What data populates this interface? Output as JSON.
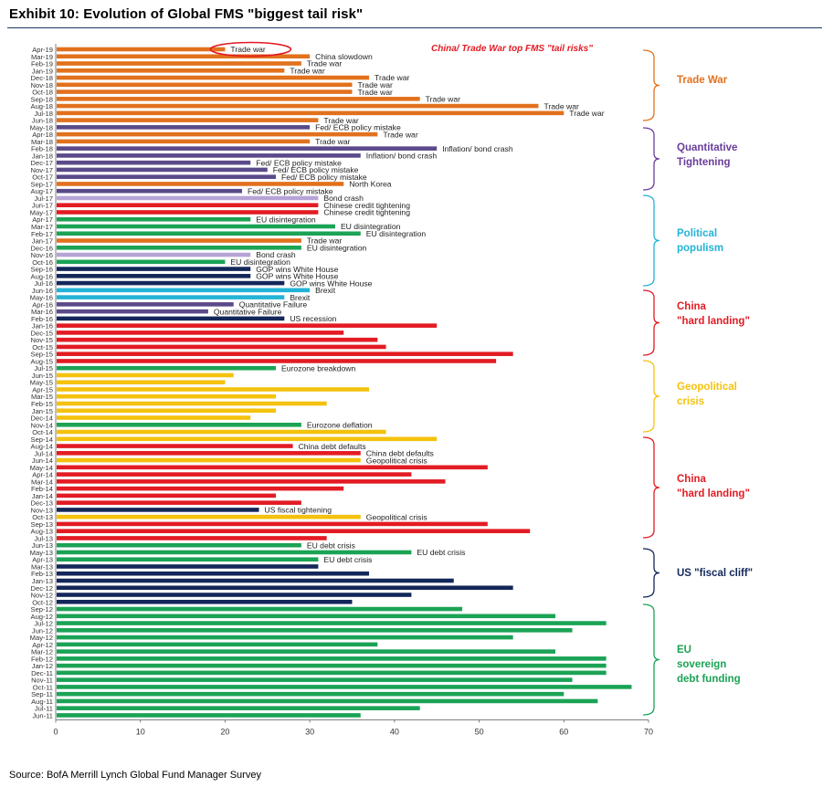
{
  "title": "Exhibit 10: Evolution of Global FMS \"biggest tail risk\"",
  "source": "Source: BofA Merrill Lynch Global Fund Manager Survey",
  "colors": {
    "Trade war": "#e2711d",
    "QT": "#5b4a8a",
    "Political": "#23b3d6",
    "China": "#e31b23",
    "Geopolitical": "#f4c20d",
    "EU": "#1ba355",
    "US": "#13275a",
    "Light": "#b7a4d6"
  },
  "chart_data": {
    "type": "bar",
    "orientation": "horizontal",
    "xlim": [
      0,
      70
    ],
    "xticks": [
      0,
      10,
      20,
      30,
      40,
      50,
      60,
      70
    ],
    "annotation": "China/ Trade War top FMS \"tail risks\"",
    "highlighted_label": "Trade war",
    "categories": [
      "Apr-19",
      "Mar-19",
      "Feb-19",
      "Jan-19",
      "Dec-18",
      "Nov-18",
      "Oct-18",
      "Sep-18",
      "Aug-18",
      "Jul-18",
      "Jun-18",
      "May-18",
      "Apr-18",
      "Mar-18",
      "Feb-18",
      "Jan-18",
      "Dec-17",
      "Nov-17",
      "Oct-17",
      "Sep-17",
      "Aug-17",
      "Jul-17",
      "Jun-17",
      "May-17",
      "Apr-17",
      "Mar-17",
      "Feb-17",
      "Jan-17",
      "Dec-16",
      "Nov-16",
      "Oct-16",
      "Sep-16",
      "Aug-16",
      "Jul-16",
      "Jun-16",
      "May-16",
      "Apr-16",
      "Mar-16",
      "Feb-16",
      "Jan-16",
      "Dec-15",
      "Nov-15",
      "Oct-15",
      "Sep-15",
      "Aug-15",
      "Jul-15",
      "Jun-15",
      "May-15",
      "Apr-15",
      "Mar-15",
      "Feb-15",
      "Jan-15",
      "Dec-14",
      "Nov-14",
      "Oct-14",
      "Sep-14",
      "Aug-14",
      "Jul-14",
      "Jun-14",
      "May-14",
      "Apr-14",
      "Mar-14",
      "Feb-14",
      "Jan-14",
      "Dec-13",
      "Nov-13",
      "Oct-13",
      "Sep-13",
      "Aug-13",
      "Jul-13",
      "Jun-13",
      "May-13",
      "Apr-13",
      "Mar-13",
      "Feb-13",
      "Jan-13",
      "Dec-12",
      "Nov-12",
      "Oct-12",
      "Sep-12",
      "Aug-12",
      "Jul-12",
      "Jun-12",
      "May-12",
      "Apr-12",
      "Mar-12",
      "Feb-12",
      "Jan-12",
      "Dec-11",
      "Nov-11",
      "Oct-11",
      "Sep-11",
      "Aug-11",
      "Jul-11",
      "Jun-11"
    ],
    "values": [
      20,
      30,
      29,
      27,
      37,
      35,
      35,
      43,
      57,
      60,
      31,
      30,
      38,
      30,
      45,
      36,
      23,
      25,
      26,
      34,
      22,
      31,
      31,
      31,
      23,
      33,
      36,
      29,
      29,
      23,
      20,
      23,
      23,
      27,
      30,
      27,
      21,
      18,
      27,
      45,
      34,
      38,
      39,
      54,
      52,
      26,
      21,
      20,
      37,
      26,
      32,
      26,
      23,
      29,
      39,
      45,
      28,
      36,
      36,
      51,
      42,
      46,
      34,
      26,
      29,
      24,
      36,
      51,
      56,
      32,
      29,
      42,
      31,
      31,
      37,
      47,
      54,
      42,
      35,
      48,
      59,
      65,
      61,
      54,
      38,
      59,
      65,
      65,
      65,
      61,
      68,
      60,
      64,
      43,
      36
    ],
    "groups": [
      "Trade war",
      "Trade war",
      "Trade war",
      "Trade war",
      "Trade war",
      "Trade war",
      "Trade war",
      "Trade war",
      "Trade war",
      "Trade war",
      "Trade war",
      "QT",
      "Trade war",
      "Trade war",
      "QT",
      "QT",
      "QT",
      "QT",
      "QT",
      "Trade war",
      "QT",
      "Light",
      "China",
      "China",
      "EU",
      "EU",
      "EU",
      "Trade war",
      "EU",
      "Light",
      "EU",
      "US",
      "US",
      "US",
      "Political",
      "Political",
      "QT",
      "QT",
      "US",
      "China",
      "China",
      "China",
      "China",
      "China",
      "China",
      "EU",
      "Geopolitical",
      "Geopolitical",
      "Geopolitical",
      "Geopolitical",
      "Geopolitical",
      "Geopolitical",
      "Geopolitical",
      "EU",
      "Geopolitical",
      "Geopolitical",
      "China",
      "China",
      "Geopolitical",
      "China",
      "China",
      "China",
      "China",
      "China",
      "China",
      "US",
      "Geopolitical",
      "China",
      "China",
      "China",
      "EU",
      "EU",
      "EU",
      "US",
      "US",
      "US",
      "US",
      "US",
      "US",
      "EU",
      "EU",
      "EU",
      "EU",
      "EU",
      "EU",
      "EU",
      "EU",
      "EU",
      "EU",
      "EU",
      "EU",
      "EU",
      "EU",
      "EU",
      "EU"
    ],
    "bar_labels": [
      "Trade war",
      "China slowdown",
      "Trade war",
      "Trade war",
      "Trade war",
      "Trade war",
      "Trade war",
      "Trade war",
      "Trade war",
      "Trade war",
      "Trade war",
      "Fed/ ECB policy mistake",
      "Trade war",
      "Trade war",
      "Inflation/ bond crash",
      "Inflation/ bond crash",
      "Fed/ ECB policy mistake",
      "Fed/ ECB policy mistake",
      "Fed/ ECB policy mistake",
      "North Korea",
      "Fed/ ECB policy mistake",
      "Bond crash",
      "Chinese credit tightening",
      "Chinese credit tightening",
      "EU disintegration",
      "EU disintegration",
      "EU disintegration",
      "Trade war",
      "EU disintegration",
      "Bond crash",
      "EU disintegration",
      "GOP wins White House",
      "GOP wins White House",
      "GOP wins White House",
      "Brexit",
      "Brexit",
      "Quantitative Failure",
      "Quantitative Failure",
      "US recession",
      "",
      "",
      "",
      "",
      "",
      "",
      "Eurozone breakdown",
      "",
      "",
      "",
      "",
      "",
      "",
      "",
      "Eurozone deflation",
      "",
      "",
      "China debt defaults",
      "China debt defaults",
      "Geopolitical crisis",
      "",
      "",
      "",
      "",
      "",
      "",
      "US fiscal tightening",
      "Geopolitical crisis",
      "",
      "",
      "",
      "EU debt crisis",
      "EU debt crisis",
      "EU debt crisis",
      "",
      "",
      "",
      "",
      "",
      "",
      "",
      "",
      "",
      "",
      "",
      "",
      "",
      "",
      "",
      "",
      "",
      "",
      "",
      "",
      "",
      ""
    ],
    "groups_brackets": [
      {
        "label": [
          "Trade War"
        ],
        "color": "#e2711d"
      },
      {
        "label": [
          "Quantitative",
          "Tightening"
        ],
        "color": "#6a3d9a"
      },
      {
        "label": [
          "Political",
          "populism"
        ],
        "color": "#23b3d6"
      },
      {
        "label": [
          "China",
          "\"hard landing\""
        ],
        "color": "#e31b23"
      },
      {
        "label": [
          "Geopolitical",
          "crisis"
        ],
        "color": "#f4c20d"
      },
      {
        "label": [
          "China",
          "\"hard landing\""
        ],
        "color": "#e31b23"
      },
      {
        "label": [
          "US \"fiscal cliff\""
        ],
        "color": "#13275a"
      },
      {
        "label": [
          "EU",
          "sovereign",
          "debt funding"
        ],
        "color": "#1ba355"
      }
    ]
  }
}
